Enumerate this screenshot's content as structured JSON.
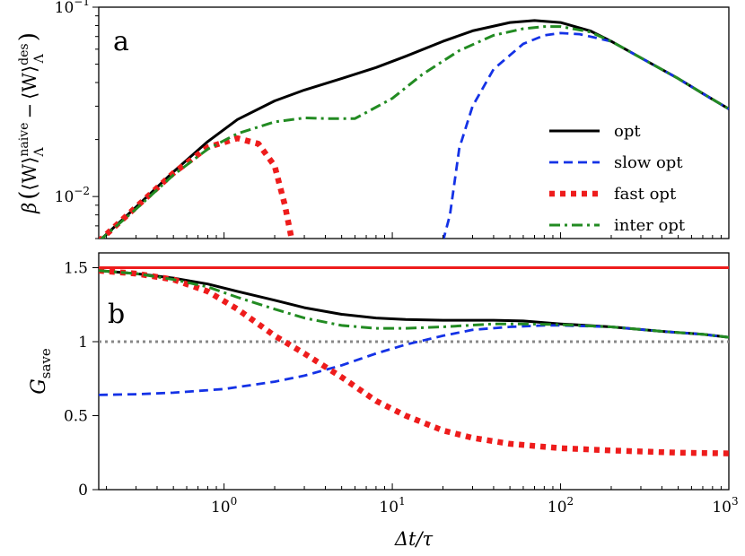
{
  "chart_data": [
    {
      "panel": "a",
      "type": "line",
      "xscale": "log",
      "yscale": "log",
      "xlim": [
        0.18,
        1000
      ],
      "ylim": [
        0.006,
        0.1
      ],
      "ylabel": "β(⟨W⟩Λnaive − ⟨W⟩Λdes)",
      "ylabel_parts": {
        "beta": "β",
        "open": "(",
        "w1": "⟨W⟩",
        "sup1": "naive",
        "sub1": "Λ",
        "minus": "−",
        "w2": "⟨W⟩",
        "sup2": "des",
        "sub2": "Λ",
        "close": ")"
      },
      "yticks": [
        {
          "value": 0.01,
          "base": "10",
          "exp": "−2"
        },
        {
          "value": 0.1,
          "base": "10",
          "exp": "−1"
        }
      ],
      "legend": {
        "position": "right",
        "entries": [
          "opt",
          "slow opt",
          "fast opt",
          "inter opt"
        ]
      },
      "series": [
        {
          "name": "opt",
          "color": "#000000",
          "style": "solid",
          "x": [
            0.18,
            0.3,
            0.5,
            0.8,
            1.2,
            2,
            3,
            5,
            8,
            12,
            20,
            30,
            50,
            70,
            100,
            150,
            200,
            300,
            500,
            700,
            1000
          ],
          "y": [
            0.0058,
            0.0088,
            0.0135,
            0.0195,
            0.0255,
            0.032,
            0.0365,
            0.042,
            0.048,
            0.055,
            0.066,
            0.075,
            0.083,
            0.085,
            0.083,
            0.075,
            0.066,
            0.054,
            0.042,
            0.035,
            0.029
          ]
        },
        {
          "name": "slow opt",
          "color": "#1432e6",
          "style": "dashed",
          "x": [
            20,
            22,
            25,
            30,
            40,
            60,
            80,
            100,
            130,
            200,
            300,
            500,
            700,
            1000
          ],
          "y": [
            0.0058,
            0.008,
            0.018,
            0.03,
            0.047,
            0.064,
            0.071,
            0.073,
            0.072,
            0.066,
            0.054,
            0.042,
            0.035,
            0.029
          ]
        },
        {
          "name": "fast opt",
          "color": "#ee1c1c",
          "style": "dotted",
          "x": [
            0.18,
            0.3,
            0.5,
            0.8,
            1.2,
            1.6,
            2.0,
            2.3,
            2.5
          ],
          "y": [
            0.0058,
            0.0088,
            0.0133,
            0.0182,
            0.0203,
            0.019,
            0.0145,
            0.009,
            0.0062
          ]
        },
        {
          "name": "inter opt",
          "color": "#228b22",
          "style": "dashdot",
          "x": [
            0.18,
            0.3,
            0.5,
            0.8,
            1.2,
            2,
            3,
            4,
            6,
            10,
            15,
            25,
            40,
            60,
            80,
            100,
            150,
            200,
            300,
            500,
            700,
            1000
          ],
          "y": [
            0.0058,
            0.0086,
            0.013,
            0.0178,
            0.0215,
            0.0248,
            0.026,
            0.0258,
            0.0258,
            0.033,
            0.044,
            0.059,
            0.071,
            0.077,
            0.079,
            0.079,
            0.074,
            0.066,
            0.054,
            0.042,
            0.035,
            0.029
          ]
        }
      ]
    },
    {
      "panel": "b",
      "type": "line",
      "xscale": "log",
      "yscale": "linear",
      "xlim": [
        0.18,
        1000
      ],
      "ylim": [
        0,
        1.6
      ],
      "xlabel": "Δt/τ",
      "ylabel": "Gsave",
      "ylabel_parts": {
        "main": "G",
        "sub": "save"
      },
      "xticks": [
        {
          "value": 1,
          "base": "10",
          "exp": "0"
        },
        {
          "value": 10,
          "base": "10",
          "exp": "1"
        },
        {
          "value": 100,
          "base": "10",
          "exp": "2"
        },
        {
          "value": 1000,
          "base": "10",
          "exp": "3"
        }
      ],
      "yticks": [
        {
          "value": 0,
          "label": "0"
        },
        {
          "value": 0.5,
          "label": "0.5"
        },
        {
          "value": 1,
          "label": "1"
        },
        {
          "value": 1.5,
          "label": "1.5"
        }
      ],
      "reference_lines": [
        {
          "y": 1.5,
          "color": "#ee1c1c",
          "style": "solid"
        },
        {
          "y": 1.0,
          "color": "#888888",
          "style": "dotted"
        }
      ],
      "series": [
        {
          "name": "opt",
          "color": "#000000",
          "style": "solid",
          "x": [
            0.18,
            0.3,
            0.5,
            0.8,
            1.2,
            2,
            3,
            5,
            8,
            12,
            20,
            40,
            60,
            100,
            200,
            400,
            700,
            1000
          ],
          "y": [
            1.48,
            1.46,
            1.43,
            1.39,
            1.34,
            1.28,
            1.23,
            1.185,
            1.16,
            1.15,
            1.145,
            1.145,
            1.14,
            1.12,
            1.1,
            1.07,
            1.05,
            1.03
          ]
        },
        {
          "name": "slow opt",
          "color": "#1432e6",
          "style": "dashed",
          "x": [
            0.18,
            0.3,
            0.5,
            1,
            2,
            3,
            5,
            8,
            12,
            20,
            30,
            50,
            80,
            100,
            200,
            400,
            700,
            1000
          ],
          "y": [
            0.64,
            0.645,
            0.655,
            0.68,
            0.73,
            0.77,
            0.84,
            0.92,
            0.98,
            1.04,
            1.08,
            1.1,
            1.11,
            1.11,
            1.1,
            1.07,
            1.05,
            1.03
          ]
        },
        {
          "name": "fast opt",
          "color": "#ee1c1c",
          "style": "dotted",
          "x": [
            0.18,
            0.3,
            0.5,
            0.8,
            1.2,
            2,
            3,
            5,
            8,
            12,
            20,
            30,
            50,
            100,
            200,
            500,
            1000
          ],
          "y": [
            1.48,
            1.46,
            1.42,
            1.34,
            1.22,
            1.04,
            0.92,
            0.76,
            0.6,
            0.5,
            0.4,
            0.35,
            0.31,
            0.28,
            0.265,
            0.25,
            0.245
          ]
        },
        {
          "name": "inter opt",
          "color": "#228b22",
          "style": "dashdot",
          "x": [
            0.18,
            0.3,
            0.5,
            0.8,
            1.2,
            2,
            3,
            5,
            8,
            12,
            20,
            40,
            60,
            100,
            200,
            400,
            700,
            1000
          ],
          "y": [
            1.48,
            1.46,
            1.42,
            1.37,
            1.3,
            1.22,
            1.16,
            1.11,
            1.09,
            1.09,
            1.1,
            1.12,
            1.12,
            1.115,
            1.1,
            1.07,
            1.05,
            1.03
          ]
        }
      ]
    }
  ]
}
